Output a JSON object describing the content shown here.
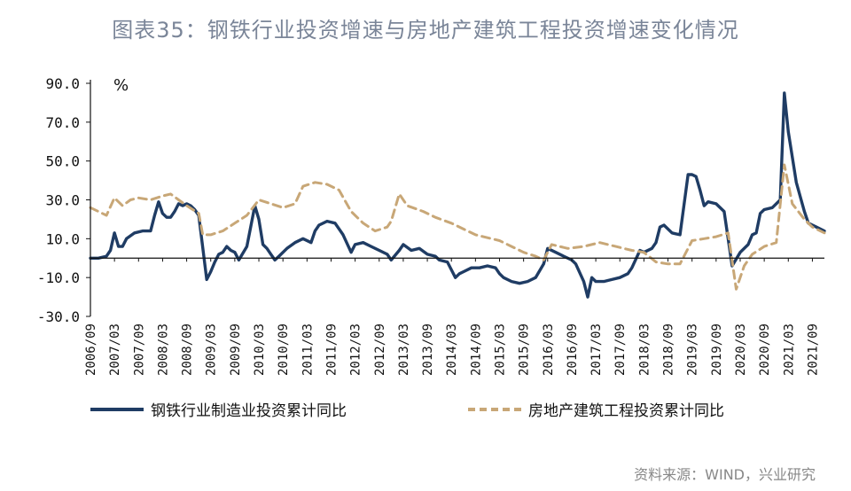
{
  "title": "图表35：钢铁行业投资增速与房地产建筑工程投资增速变化情况",
  "unit": "%",
  "source": "资料来源：WIND，兴业研究",
  "colors": {
    "steel": "#1f3c64",
    "property": "#c8a777",
    "axis": "#111111"
  },
  "chart_data": {
    "type": "line",
    "y_ticks": [
      "90.0",
      "70.0",
      "50.0",
      "30.0",
      "10.0",
      "-10.0",
      "-30.0"
    ],
    "ylim": [
      -30,
      90
    ],
    "x_start": "2006/09",
    "x_end": "2021/12",
    "x_tick_labels": [
      "2006/09",
      "2007/03",
      "2007/09",
      "2008/03",
      "2008/09",
      "2009/03",
      "2009/09",
      "2010/03",
      "2010/09",
      "2011/03",
      "2011/09",
      "2012/03",
      "2012/09",
      "2013/03",
      "2013/09",
      "2014/03",
      "2014/09",
      "2015/03",
      "2015/09",
      "2016/03",
      "2016/09",
      "2017/03",
      "2017/09",
      "2018/03",
      "2018/09",
      "2019/03",
      "2019/09",
      "2020/03",
      "2020/09",
      "2021/03",
      "2021/09"
    ],
    "series": [
      {
        "name": "钢铁行业制造业投资累计同比",
        "color": "#1f3c64",
        "style": "solid",
        "points": [
          [
            "2006/09",
            0
          ],
          [
            "2006/11",
            0
          ],
          [
            "2007/01",
            1
          ],
          [
            "2007/02",
            4
          ],
          [
            "2007/03",
            13
          ],
          [
            "2007/04",
            6
          ],
          [
            "2007/05",
            6
          ],
          [
            "2007/06",
            10
          ],
          [
            "2007/08",
            13
          ],
          [
            "2007/10",
            14
          ],
          [
            "2007/12",
            14
          ],
          [
            "2008/01",
            22
          ],
          [
            "2008/02",
            29
          ],
          [
            "2008/03",
            23
          ],
          [
            "2008/04",
            21
          ],
          [
            "2008/05",
            21
          ],
          [
            "2008/06",
            24
          ],
          [
            "2008/07",
            28
          ],
          [
            "2008/08",
            27
          ],
          [
            "2008/09",
            28
          ],
          [
            "2008/10",
            27
          ],
          [
            "2008/11",
            25
          ],
          [
            "2008/12",
            22
          ],
          [
            "2009/02",
            -11
          ],
          [
            "2009/03",
            -7
          ],
          [
            "2009/04",
            -2
          ],
          [
            "2009/05",
            2
          ],
          [
            "2009/06",
            3
          ],
          [
            "2009/07",
            6
          ],
          [
            "2009/08",
            4
          ],
          [
            "2009/09",
            3
          ],
          [
            "2009/10",
            -1
          ],
          [
            "2009/12",
            6
          ],
          [
            "2010/02",
            27
          ],
          [
            "2010/03",
            20
          ],
          [
            "2010/04",
            7
          ],
          [
            "2010/05",
            5
          ],
          [
            "2010/06",
            2
          ],
          [
            "2010/07",
            -1
          ],
          [
            "2010/08",
            1
          ],
          [
            "2010/10",
            5
          ],
          [
            "2010/12",
            8
          ],
          [
            "2011/02",
            10
          ],
          [
            "2011/04",
            8
          ],
          [
            "2011/05",
            14
          ],
          [
            "2011/06",
            17
          ],
          [
            "2011/08",
            19
          ],
          [
            "2011/10",
            18
          ],
          [
            "2011/12",
            12
          ],
          [
            "2012/02",
            3
          ],
          [
            "2012/03",
            7
          ],
          [
            "2012/05",
            8
          ],
          [
            "2012/07",
            6
          ],
          [
            "2012/09",
            4
          ],
          [
            "2012/11",
            2
          ],
          [
            "2012/12",
            -1
          ],
          [
            "2013/02",
            4
          ],
          [
            "2013/03",
            7
          ],
          [
            "2013/05",
            4
          ],
          [
            "2013/07",
            5
          ],
          [
            "2013/09",
            2
          ],
          [
            "2013/11",
            1
          ],
          [
            "2013/12",
            -1
          ],
          [
            "2014/02",
            -2
          ],
          [
            "2014/03",
            -6
          ],
          [
            "2014/04",
            -10
          ],
          [
            "2014/05",
            -8
          ],
          [
            "2014/06",
            -7
          ],
          [
            "2014/08",
            -5
          ],
          [
            "2014/10",
            -5
          ],
          [
            "2014/12",
            -4
          ],
          [
            "2015/02",
            -5
          ],
          [
            "2015/03",
            -8
          ],
          [
            "2015/04",
            -10
          ],
          [
            "2015/06",
            -12
          ],
          [
            "2015/08",
            -13
          ],
          [
            "2015/10",
            -12
          ],
          [
            "2015/12",
            -10
          ],
          [
            "2016/02",
            -3
          ],
          [
            "2016/03",
            5
          ],
          [
            "2016/05",
            3
          ],
          [
            "2016/07",
            1
          ],
          [
            "2016/09",
            -1
          ],
          [
            "2016/10",
            -3
          ],
          [
            "2016/12",
            -12
          ],
          [
            "2017/01",
            -20
          ],
          [
            "2017/02",
            -10
          ],
          [
            "2017/03",
            -12
          ],
          [
            "2017/05",
            -12
          ],
          [
            "2017/07",
            -11
          ],
          [
            "2017/09",
            -10
          ],
          [
            "2017/11",
            -8
          ],
          [
            "2017/12",
            -5
          ],
          [
            "2018/02",
            4
          ],
          [
            "2018/03",
            3
          ],
          [
            "2018/05",
            5
          ],
          [
            "2018/06",
            8
          ],
          [
            "2018/07",
            16
          ],
          [
            "2018/08",
            17
          ],
          [
            "2018/10",
            13
          ],
          [
            "2018/12",
            12
          ],
          [
            "2019/02",
            43
          ],
          [
            "2019/03",
            43
          ],
          [
            "2019/04",
            42
          ],
          [
            "2019/05",
            35
          ],
          [
            "2019/06",
            27
          ],
          [
            "2019/07",
            29
          ],
          [
            "2019/09",
            28
          ],
          [
            "2019/11",
            24
          ],
          [
            "2020/01",
            -4
          ],
          [
            "2020/03",
            3
          ],
          [
            "2020/05",
            7
          ],
          [
            "2020/06",
            12
          ],
          [
            "2020/07",
            13
          ],
          [
            "2020/08",
            23
          ],
          [
            "2020/09",
            25
          ],
          [
            "2020/11",
            26
          ],
          [
            "2021/01",
            30
          ],
          [
            "2021/02",
            85
          ],
          [
            "2021/03",
            65
          ],
          [
            "2021/05",
            39
          ],
          [
            "2021/07",
            24
          ],
          [
            "2021/08",
            18
          ],
          [
            "2021/10",
            16
          ],
          [
            "2021/12",
            14
          ]
        ]
      },
      {
        "name": "房地产建筑工程投资累计同比",
        "color": "#c8a777",
        "style": "dashed",
        "points": [
          [
            "2006/09",
            26
          ],
          [
            "2007/01",
            22
          ],
          [
            "2007/03",
            31
          ],
          [
            "2007/05",
            27
          ],
          [
            "2007/07",
            30
          ],
          [
            "2007/09",
            31
          ],
          [
            "2007/12",
            30
          ],
          [
            "2008/03",
            32
          ],
          [
            "2008/05",
            33
          ],
          [
            "2008/07",
            30
          ],
          [
            "2008/09",
            27
          ],
          [
            "2008/12",
            23
          ],
          [
            "2009/01",
            12
          ],
          [
            "2009/03",
            12
          ],
          [
            "2009/06",
            14
          ],
          [
            "2009/09",
            18
          ],
          [
            "2009/12",
            22
          ],
          [
            "2010/03",
            30
          ],
          [
            "2010/06",
            28
          ],
          [
            "2010/09",
            26
          ],
          [
            "2010/12",
            28
          ],
          [
            "2011/02",
            37
          ],
          [
            "2011/05",
            39
          ],
          [
            "2011/08",
            38
          ],
          [
            "2011/11",
            35
          ],
          [
            "2012/02",
            24
          ],
          [
            "2012/05",
            18
          ],
          [
            "2012/08",
            14
          ],
          [
            "2012/11",
            16
          ],
          [
            "2012/12",
            19
          ],
          [
            "2013/02",
            33
          ],
          [
            "2013/04",
            27
          ],
          [
            "2013/08",
            24
          ],
          [
            "2013/11",
            21
          ],
          [
            "2014/03",
            18
          ],
          [
            "2014/06",
            15
          ],
          [
            "2014/09",
            12
          ],
          [
            "2015/03",
            9
          ],
          [
            "2015/06",
            6
          ],
          [
            "2015/09",
            3
          ],
          [
            "2015/12",
            1
          ],
          [
            "2016/02",
            -1
          ],
          [
            "2016/04",
            7
          ],
          [
            "2016/08",
            5
          ],
          [
            "2016/12",
            6
          ],
          [
            "2017/04",
            8
          ],
          [
            "2017/08",
            6
          ],
          [
            "2017/12",
            4
          ],
          [
            "2018/03",
            3
          ],
          [
            "2018/06",
            -2
          ],
          [
            "2018/09",
            -3
          ],
          [
            "2018/12",
            -3
          ],
          [
            "2019/03",
            9
          ],
          [
            "2019/06",
            10
          ],
          [
            "2019/09",
            11
          ],
          [
            "2019/12",
            13
          ],
          [
            "2020/02",
            -16
          ],
          [
            "2020/04",
            -4
          ],
          [
            "2020/06",
            2
          ],
          [
            "2020/09",
            6
          ],
          [
            "2020/12",
            8
          ],
          [
            "2021/02",
            48
          ],
          [
            "2021/04",
            28
          ],
          [
            "2021/07",
            20
          ],
          [
            "2021/09",
            16
          ],
          [
            "2021/12",
            13
          ]
        ]
      }
    ]
  }
}
